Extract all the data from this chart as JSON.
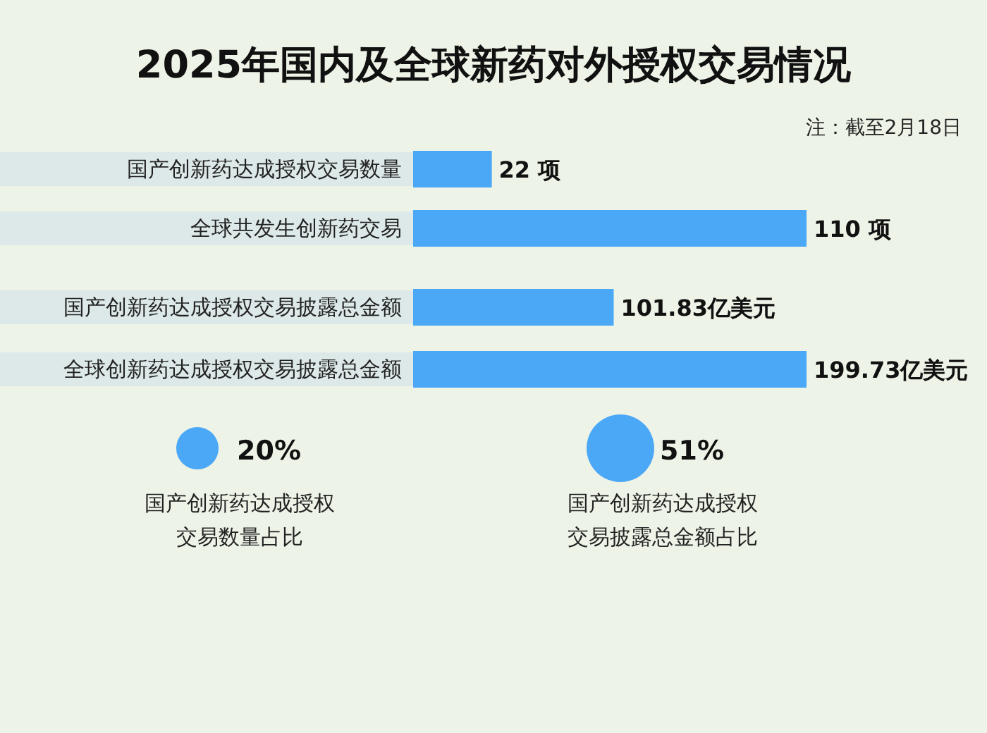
{
  "chart_data": [
    {
      "type": "bar",
      "orientation": "horizontal",
      "title": "2025年国内及全球新药对外授权交易情况",
      "annotations": [
        "注：截至2月18日"
      ],
      "categories": [
        "国产创新药达成授权交易数量",
        "全球共发生创新药交易"
      ],
      "values": [
        22,
        110
      ],
      "color": "#4ba8f6",
      "value_labels": [
        "22 项",
        "110 项"
      ]
    },
    {
      "type": "bar",
      "orientation": "horizontal",
      "categories": [
        "国产创新药达成授权交易披露总金额",
        "全球创新药达成授权交易披露总金额"
      ],
      "values": [
        101.83,
        199.73
      ],
      "color": "#4ba8f6",
      "value_labels": [
        "101.83亿美元",
        "199.73亿美元"
      ]
    },
    {
      "type": "other",
      "categories": [
        "国产创新药达成授权交易数量占比",
        "国产创新药达成授权交易披露总金额占比"
      ],
      "values": [
        20,
        51
      ],
      "color": "#4ba8f6",
      "value_labels": [
        "20%",
        "51%"
      ]
    }
  ]
}
